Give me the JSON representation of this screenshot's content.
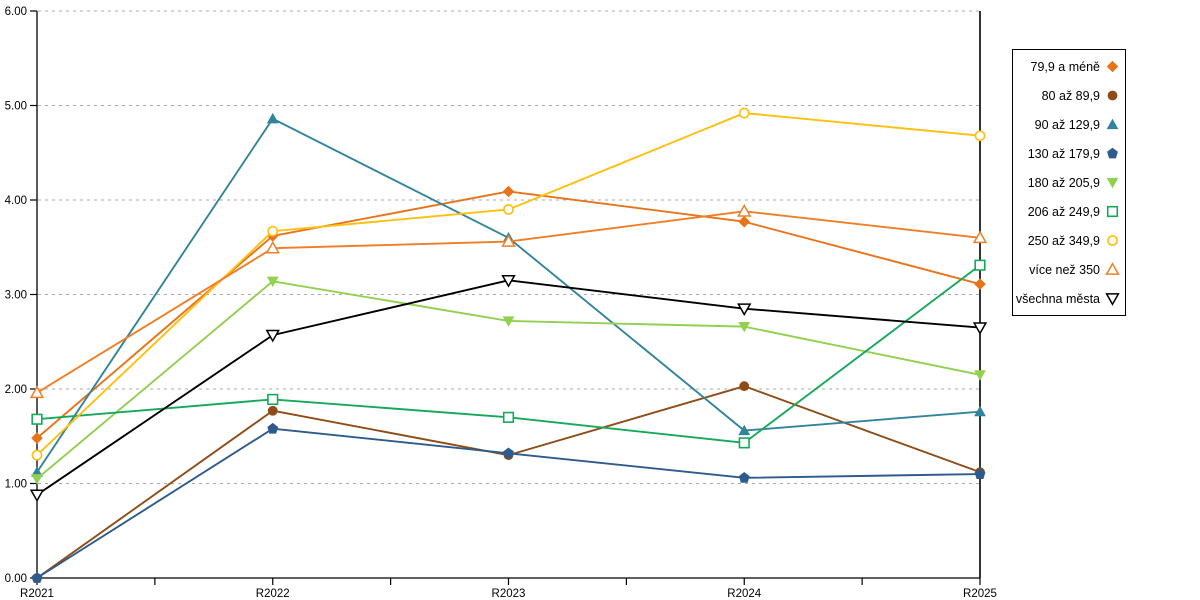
{
  "chart_data": {
    "type": "line",
    "categories": [
      "R2021",
      "R2022",
      "R2023",
      "R2024",
      "R2025"
    ],
    "series": [
      {
        "name": "79,9 a méně",
        "marker": "diamond-filled",
        "color": "#E8731A",
        "values": [
          1.48,
          3.62,
          4.09,
          3.77,
          3.11
        ]
      },
      {
        "name": "80 až 89,9",
        "marker": "circle-filled",
        "color": "#8E4C17",
        "values": [
          0.0,
          1.77,
          1.3,
          2.03,
          1.12
        ]
      },
      {
        "name": "90 až 129,9",
        "marker": "triangle-up-filled",
        "color": "#31849B",
        "values": [
          1.12,
          4.86,
          3.6,
          1.56,
          1.76
        ]
      },
      {
        "name": "130 až 179,9",
        "marker": "pentagon-filled",
        "color": "#2E5B8C",
        "values": [
          0.0,
          1.58,
          1.32,
          1.06,
          1.1
        ]
      },
      {
        "name": "180 až 205,9",
        "marker": "triangle-down-filled",
        "color": "#92D050",
        "values": [
          1.05,
          3.14,
          2.72,
          2.66,
          2.15
        ]
      },
      {
        "name": "206 až 249,9",
        "marker": "square-open",
        "color": "#16A85B",
        "values": [
          1.68,
          1.89,
          1.7,
          1.43,
          3.31
        ]
      },
      {
        "name": "250 až 349,9",
        "marker": "circle-open",
        "color": "#FDC010",
        "values": [
          1.3,
          3.67,
          3.9,
          4.92,
          4.68
        ]
      },
      {
        "name": "více než 350",
        "marker": "triangle-up-open",
        "color": "#F07E27",
        "values": [
          1.96,
          3.49,
          3.56,
          3.88,
          3.6
        ]
      },
      {
        "name": "všechna města",
        "marker": "triangle-down-open",
        "color": "#000000",
        "values": [
          0.88,
          2.57,
          3.15,
          2.85,
          2.65
        ]
      }
    ],
    "ylim": [
      0,
      6
    ],
    "ytick_labels": [
      "0.00",
      "1.00",
      "2.00",
      "3.00",
      "4.00",
      "5.00",
      "6.00"
    ],
    "grid": "horizontal-dashed",
    "legend_position": "right",
    "title": "",
    "xlabel": "",
    "ylabel": ""
  },
  "colors": {
    "axis": "#000000",
    "grid": "#ABABAB",
    "background": "#FFFFFF",
    "tick_label": "#000000"
  }
}
